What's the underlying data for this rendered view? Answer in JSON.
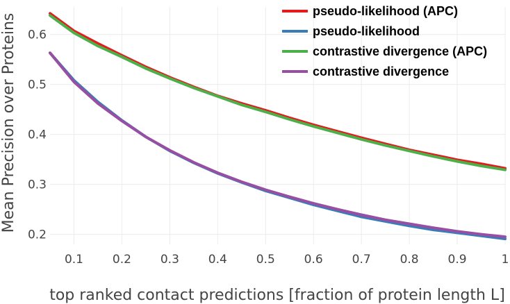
{
  "chart_data": {
    "type": "line",
    "title": "",
    "xlabel": "top ranked contact predictions [fraction of protein length L]",
    "ylabel": "Mean Precision over Proteins",
    "xlim": [
      0.05,
      1.0
    ],
    "ylim": [
      0.18,
      0.655
    ],
    "xticks": [
      0.1,
      0.2,
      0.3,
      0.4,
      0.5,
      0.6,
      0.7,
      0.8,
      0.9,
      1.0
    ],
    "xtick_labels": [
      "0.1",
      "0.2",
      "0.3",
      "0.4",
      "0.5",
      "0.6",
      "0.7",
      "0.8",
      "0.9",
      "1"
    ],
    "yticks": [
      0.2,
      0.3,
      0.4,
      0.5,
      0.6
    ],
    "ytick_labels": [
      "0.2",
      "0.3",
      "0.4",
      "0.5",
      "0.6"
    ],
    "grid": true,
    "legend_position": "top-right",
    "x": [
      0.05,
      0.1,
      0.15,
      0.2,
      0.25,
      0.3,
      0.35,
      0.4,
      0.45,
      0.5,
      0.55,
      0.6,
      0.65,
      0.7,
      0.75,
      0.8,
      0.85,
      0.9,
      0.95,
      1.0
    ],
    "series": [
      {
        "name": "pseudo-likelihood (APC)",
        "color": "#e41a1c",
        "values": [
          0.642,
          0.607,
          0.582,
          0.558,
          0.535,
          0.514,
          0.495,
          0.477,
          0.462,
          0.448,
          0.433,
          0.419,
          0.406,
          0.393,
          0.381,
          0.369,
          0.359,
          0.349,
          0.341,
          0.332
        ]
      },
      {
        "name": "pseudo-likelihood",
        "color": "#377eb8",
        "values": [
          0.563,
          0.508,
          0.465,
          0.428,
          0.395,
          0.367,
          0.343,
          0.322,
          0.304,
          0.287,
          0.273,
          0.259,
          0.247,
          0.235,
          0.226,
          0.217,
          0.209,
          0.203,
          0.197,
          0.191
        ]
      },
      {
        "name": "contrastive divergence (APC)",
        "color": "#4daf4a",
        "values": [
          0.638,
          0.603,
          0.577,
          0.555,
          0.532,
          0.512,
          0.493,
          0.476,
          0.459,
          0.445,
          0.43,
          0.416,
          0.403,
          0.39,
          0.378,
          0.367,
          0.356,
          0.346,
          0.337,
          0.329
        ]
      },
      {
        "name": "contrastive divergence",
        "color": "#984ea3",
        "values": [
          0.563,
          0.505,
          0.462,
          0.427,
          0.395,
          0.368,
          0.344,
          0.323,
          0.305,
          0.289,
          0.275,
          0.262,
          0.25,
          0.239,
          0.229,
          0.221,
          0.213,
          0.206,
          0.2,
          0.195
        ]
      }
    ]
  }
}
